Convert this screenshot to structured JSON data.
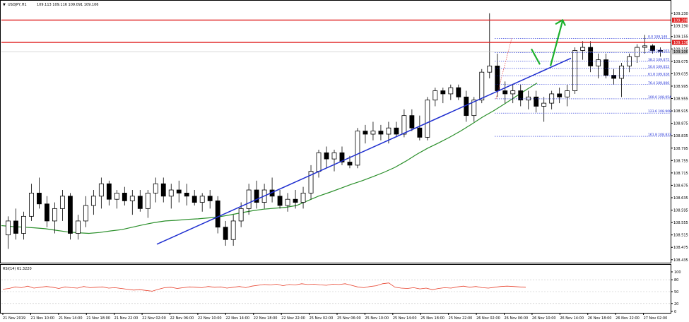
{
  "header": {
    "symbol": "USDJPY,H1",
    "ohlc": "109.113 109.116 109.091 109.106"
  },
  "rsi_header": "RSI(14) 61.3220",
  "colors": {
    "background": "#ffffff",
    "candle_up": "#ffffff",
    "candle_down": "#000000",
    "candle_outline": "#000000",
    "resistance": "#e02020",
    "trendline": "#1f2fd0",
    "moving_average": "#2a8f2a",
    "fib": "#1a2ad6",
    "arrow": "#1cb02c",
    "rsi_line": "#e8412c",
    "rsi_level": "#c0c0c0",
    "current_price": "#c0c0c0"
  },
  "price_badges": {
    "resistance_upper": "109.208",
    "resistance_lower": "109.136",
    "current": "109.106"
  },
  "chart_data": [
    {
      "type": "candlestick",
      "title": "",
      "ylim": [
        108.43,
        109.25
      ],
      "y_ticks": [
        "109.230",
        "109.190",
        "109.155",
        "109.115",
        "109.075",
        "109.035",
        "108.995",
        "108.955",
        "108.915",
        "108.875",
        "108.835",
        "108.795",
        "108.755",
        "108.715",
        "108.675",
        "108.635",
        "108.595",
        "108.555",
        "108.515",
        "108.475",
        "108.435"
      ],
      "x_ticks": [
        "21 Nov 2019",
        "21 Nov 10:00",
        "21 Nov 14:00",
        "21 Nov 18:00",
        "21 Nov 22:00",
        "22 Nov 02:00",
        "22 Nov 06:00",
        "22 Nov 10:00",
        "22 Nov 14:00",
        "22 Nov 18:00",
        "22 Nov 22:00",
        "25 Nov 02:00",
        "25 Nov 06:00",
        "25 Nov 10:00",
        "25 Nov 14:00",
        "25 Nov 18:00",
        "25 Nov 22:00",
        "26 Nov 02:00",
        "26 Nov 06:00",
        "26 Nov 10:00",
        "26 Nov 14:00",
        "26 Nov 18:00",
        "26 Nov 22:00",
        "27 Nov 02:00"
      ],
      "candles": [
        [
          108.515,
          108.575,
          108.47,
          108.56
        ],
        [
          108.56,
          108.6,
          108.5,
          108.52
        ],
        [
          108.52,
          108.59,
          108.5,
          108.575
        ],
        [
          108.575,
          108.68,
          108.56,
          108.65
        ],
        [
          108.65,
          108.7,
          108.6,
          108.615
        ],
        [
          108.615,
          108.64,
          108.54,
          108.56
        ],
        [
          108.56,
          108.62,
          108.52,
          108.6
        ],
        [
          108.6,
          108.66,
          108.56,
          108.64
        ],
        [
          108.64,
          108.65,
          108.5,
          108.52
        ],
        [
          108.52,
          108.58,
          108.5,
          108.56
        ],
        [
          108.56,
          108.64,
          108.54,
          108.61
        ],
        [
          108.61,
          108.66,
          108.58,
          108.64
        ],
        [
          108.64,
          108.7,
          108.6,
          108.68
        ],
        [
          108.68,
          108.69,
          108.61,
          108.63
        ],
        [
          108.63,
          108.66,
          108.6,
          108.65
        ],
        [
          108.65,
          108.67,
          108.61,
          108.625
        ],
        [
          108.625,
          108.66,
          108.58,
          108.64
        ],
        [
          108.64,
          108.66,
          108.59,
          108.6
        ],
        [
          108.6,
          108.66,
          108.57,
          108.65
        ],
        [
          108.65,
          108.7,
          108.62,
          108.68
        ],
        [
          108.68,
          108.7,
          108.62,
          108.64
        ],
        [
          108.64,
          108.68,
          108.6,
          108.66
        ],
        [
          108.66,
          108.69,
          108.62,
          108.65
        ],
        [
          108.65,
          108.68,
          108.61,
          108.64
        ],
        [
          108.64,
          108.66,
          108.61,
          108.62
        ],
        [
          108.62,
          108.65,
          108.59,
          108.64
        ],
        [
          108.64,
          108.66,
          108.6,
          108.625
        ],
        [
          108.625,
          108.64,
          108.52,
          108.54
        ],
        [
          108.54,
          108.56,
          108.48,
          108.5
        ],
        [
          108.5,
          108.58,
          108.48,
          108.56
        ],
        [
          108.56,
          108.62,
          108.54,
          108.6
        ],
        [
          108.6,
          108.68,
          108.58,
          108.66
        ],
        [
          108.66,
          108.69,
          108.6,
          108.62
        ],
        [
          108.62,
          108.68,
          108.6,
          108.66
        ],
        [
          108.66,
          108.7,
          108.62,
          108.64
        ],
        [
          108.64,
          108.66,
          108.6,
          108.61
        ],
        [
          108.61,
          108.65,
          108.59,
          108.63
        ],
        [
          108.63,
          108.66,
          108.6,
          108.62
        ],
        [
          108.62,
          108.67,
          108.6,
          108.65
        ],
        [
          108.65,
          108.74,
          108.63,
          108.72
        ],
        [
          108.72,
          108.79,
          108.7,
          108.78
        ],
        [
          108.78,
          108.8,
          108.73,
          108.76
        ],
        [
          108.76,
          108.79,
          108.72,
          108.78
        ],
        [
          108.78,
          108.8,
          108.74,
          108.75
        ],
        [
          108.75,
          108.77,
          108.73,
          108.74
        ],
        [
          108.74,
          108.86,
          108.73,
          108.85
        ],
        [
          108.85,
          108.87,
          108.81,
          108.84
        ],
        [
          108.84,
          108.88,
          108.82,
          108.85
        ],
        [
          108.85,
          108.87,
          108.82,
          108.84
        ],
        [
          108.84,
          108.88,
          108.81,
          108.86
        ],
        [
          108.86,
          108.88,
          108.83,
          108.84
        ],
        [
          108.84,
          108.92,
          108.83,
          108.9
        ],
        [
          108.9,
          108.92,
          108.85,
          108.86
        ],
        [
          108.86,
          108.9,
          108.82,
          108.83
        ],
        [
          108.83,
          108.96,
          108.82,
          108.95
        ],
        [
          108.95,
          108.99,
          108.93,
          108.98
        ],
        [
          108.98,
          108.99,
          108.94,
          108.97
        ],
        [
          108.97,
          109.0,
          108.95,
          108.99
        ],
        [
          108.99,
          109.0,
          108.95,
          108.96
        ],
        [
          108.96,
          108.98,
          108.88,
          108.9
        ],
        [
          108.9,
          108.96,
          108.88,
          108.95
        ],
        [
          108.95,
          109.05,
          108.94,
          109.04
        ],
        [
          109.04,
          109.23,
          109.02,
          109.06
        ],
        [
          109.06,
          109.1,
          108.96,
          108.98
        ],
        [
          108.98,
          109.01,
          108.94,
          108.97
        ],
        [
          108.97,
          109.0,
          108.94,
          108.98
        ],
        [
          108.98,
          109.0,
          108.93,
          108.95
        ],
        [
          108.95,
          108.98,
          108.92,
          108.96
        ],
        [
          108.96,
          108.98,
          108.91,
          108.93
        ],
        [
          108.93,
          108.96,
          108.88,
          108.94
        ],
        [
          108.94,
          108.98,
          108.92,
          108.97
        ],
        [
          108.97,
          108.99,
          108.94,
          108.96
        ],
        [
          108.96,
          109.0,
          108.93,
          108.98
        ],
        [
          108.98,
          109.12,
          108.97,
          109.11
        ],
        [
          109.11,
          109.14,
          109.08,
          109.12
        ],
        [
          109.12,
          109.14,
          109.04,
          109.06
        ],
        [
          109.06,
          109.1,
          109.02,
          109.08
        ],
        [
          109.08,
          109.1,
          109.02,
          109.03
        ],
        [
          109.03,
          109.05,
          109.0,
          109.02
        ],
        [
          109.02,
          109.07,
          108.96,
          109.06
        ],
        [
          109.06,
          109.1,
          109.04,
          109.09
        ],
        [
          109.09,
          109.13,
          109.07,
          109.12
        ],
        [
          109.12,
          109.16,
          109.1,
          109.125
        ],
        [
          109.125,
          109.13,
          109.1,
          109.11
        ],
        [
          109.11,
          109.12,
          109.09,
          109.106
        ]
      ],
      "moving_average": [
        108.545,
        108.542,
        108.54,
        108.538,
        108.535,
        108.53,
        108.525,
        108.522,
        108.52,
        108.523,
        108.528,
        108.532,
        108.54,
        108.548,
        108.555,
        108.56,
        108.562,
        108.565,
        108.567,
        108.57,
        108.574,
        108.58,
        108.587,
        108.593,
        108.598,
        108.601,
        108.604,
        108.61,
        108.625,
        108.64,
        108.652,
        108.665,
        108.678,
        108.69,
        108.703,
        108.717,
        108.733,
        108.753,
        108.775,
        108.795,
        108.812,
        108.83,
        108.85,
        108.872,
        108.895,
        108.915,
        108.937,
        108.96,
        108.983,
        109.005
      ],
      "trendline": [
        [
          108.485
        ],
        [
          109.085
        ]
      ],
      "resistance_levels": [
        109.208,
        109.136
      ],
      "current_price": 109.106,
      "fibonacci": [
        {
          "label": "0.0 109.149",
          "value": 109.149
        },
        {
          "label": "23.6 109.103",
          "value": 109.103
        },
        {
          "label": "38.2 109.075",
          "value": 109.075
        },
        {
          "label": "50.0 109.052",
          "value": 109.052
        },
        {
          "label": "61.8 109.028",
          "value": 109.028
        },
        {
          "label": "76.4 109.000",
          "value": 109.0
        },
        {
          "label": "100.0 108.954",
          "value": 108.954
        },
        {
          "label": "123.6 108.908",
          "value": 108.908
        },
        {
          "label": "161.8 108.833",
          "value": 108.833
        }
      ]
    },
    {
      "type": "line",
      "title": "RSI(14) 61.3220",
      "ylim": [
        0,
        100
      ],
      "y_ticks": [
        "100",
        "80",
        "50",
        "20",
        "0"
      ],
      "levels": [
        80,
        50,
        20
      ],
      "values": [
        56,
        58,
        62,
        60,
        64,
        59,
        61,
        63,
        61,
        58,
        62,
        60,
        59,
        63,
        60,
        61,
        62,
        59,
        60,
        58,
        56,
        54,
        55,
        53,
        51,
        56,
        60,
        61,
        58,
        60,
        62,
        61,
        60,
        63,
        61,
        62,
        59,
        61,
        63,
        60,
        64,
        66,
        68,
        67,
        69,
        65,
        68,
        67,
        70,
        68,
        69,
        67,
        66,
        69,
        68,
        70,
        66,
        62,
        60,
        63,
        65,
        70,
        72,
        61,
        59,
        58,
        60,
        57,
        59,
        55,
        58,
        60,
        59,
        62,
        64,
        61,
        63,
        60,
        59,
        61,
        63,
        64,
        63,
        62,
        61
      ]
    }
  ]
}
